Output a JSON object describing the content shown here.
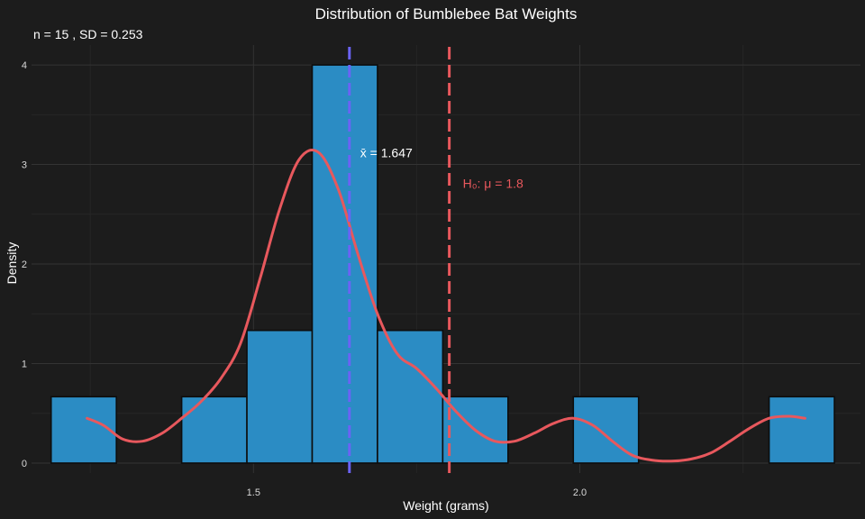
{
  "chart_data": {
    "type": "bar",
    "title": "Distribution of Bumblebee Bat Weights",
    "subtitle": "n = 15 , SD = 0.253",
    "xlabel": "Weight (grams)",
    "ylabel": "Density",
    "xlim": [
      1.16,
      2.43
    ],
    "ylim": [
      -0.1,
      4.2
    ],
    "x_ticks": [
      1.5,
      2.0
    ],
    "x_tick_labels": [
      "1.5",
      "2.0"
    ],
    "y_ticks": [
      0,
      1,
      2,
      3,
      4
    ],
    "y_tick_labels": [
      "0",
      "1",
      "2",
      "3",
      "4"
    ],
    "grid": true,
    "bins": [
      {
        "x0": 1.19,
        "x1": 1.29,
        "density": 0.667
      },
      {
        "x0": 1.29,
        "x1": 1.39,
        "density": 0
      },
      {
        "x0": 1.39,
        "x1": 1.49,
        "density": 0.667
      },
      {
        "x0": 1.49,
        "x1": 1.59,
        "density": 1.333
      },
      {
        "x0": 1.59,
        "x1": 1.69,
        "density": 4.0
      },
      {
        "x0": 1.69,
        "x1": 1.79,
        "density": 1.333
      },
      {
        "x0": 1.79,
        "x1": 1.89,
        "density": 0.667
      },
      {
        "x0": 1.89,
        "x1": 1.99,
        "density": 0
      },
      {
        "x0": 1.99,
        "x1": 2.09,
        "density": 0.667
      },
      {
        "x0": 2.09,
        "x1": 2.19,
        "density": 0
      },
      {
        "x0": 2.19,
        "x1": 2.29,
        "density": 0
      },
      {
        "x0": 2.29,
        "x1": 2.39,
        "density": 0.667
      }
    ],
    "density_curve": {
      "x": [
        1.245,
        1.27,
        1.3,
        1.33,
        1.36,
        1.39,
        1.42,
        1.45,
        1.48,
        1.51,
        1.54,
        1.57,
        1.6,
        1.63,
        1.66,
        1.69,
        1.72,
        1.75,
        1.78,
        1.81,
        1.84,
        1.87,
        1.9,
        1.93,
        1.96,
        1.99,
        2.02,
        2.05,
        2.08,
        2.11,
        2.14,
        2.17,
        2.2,
        2.23,
        2.26,
        2.29,
        2.32,
        2.345
      ],
      "y": [
        0.45,
        0.38,
        0.24,
        0.22,
        0.3,
        0.45,
        0.62,
        0.85,
        1.2,
        1.85,
        2.55,
        3.05,
        3.12,
        2.75,
        2.1,
        1.5,
        1.1,
        0.95,
        0.75,
        0.52,
        0.33,
        0.22,
        0.22,
        0.3,
        0.4,
        0.45,
        0.38,
        0.22,
        0.08,
        0.03,
        0.02,
        0.04,
        0.1,
        0.22,
        0.35,
        0.45,
        0.47,
        0.45
      ],
      "color": "#e8585d"
    },
    "mean_line": {
      "x": 1.647,
      "label": "x̄ = 1.647",
      "label_y": 3.12,
      "color": "#6b63f5"
    },
    "h0_line": {
      "x": 1.8,
      "label": "H₀: μ = 1.8",
      "label_y": 2.81,
      "color": "#e8585d"
    },
    "bar_color": "#2b8cc4",
    "background": "#1c1c1c"
  }
}
